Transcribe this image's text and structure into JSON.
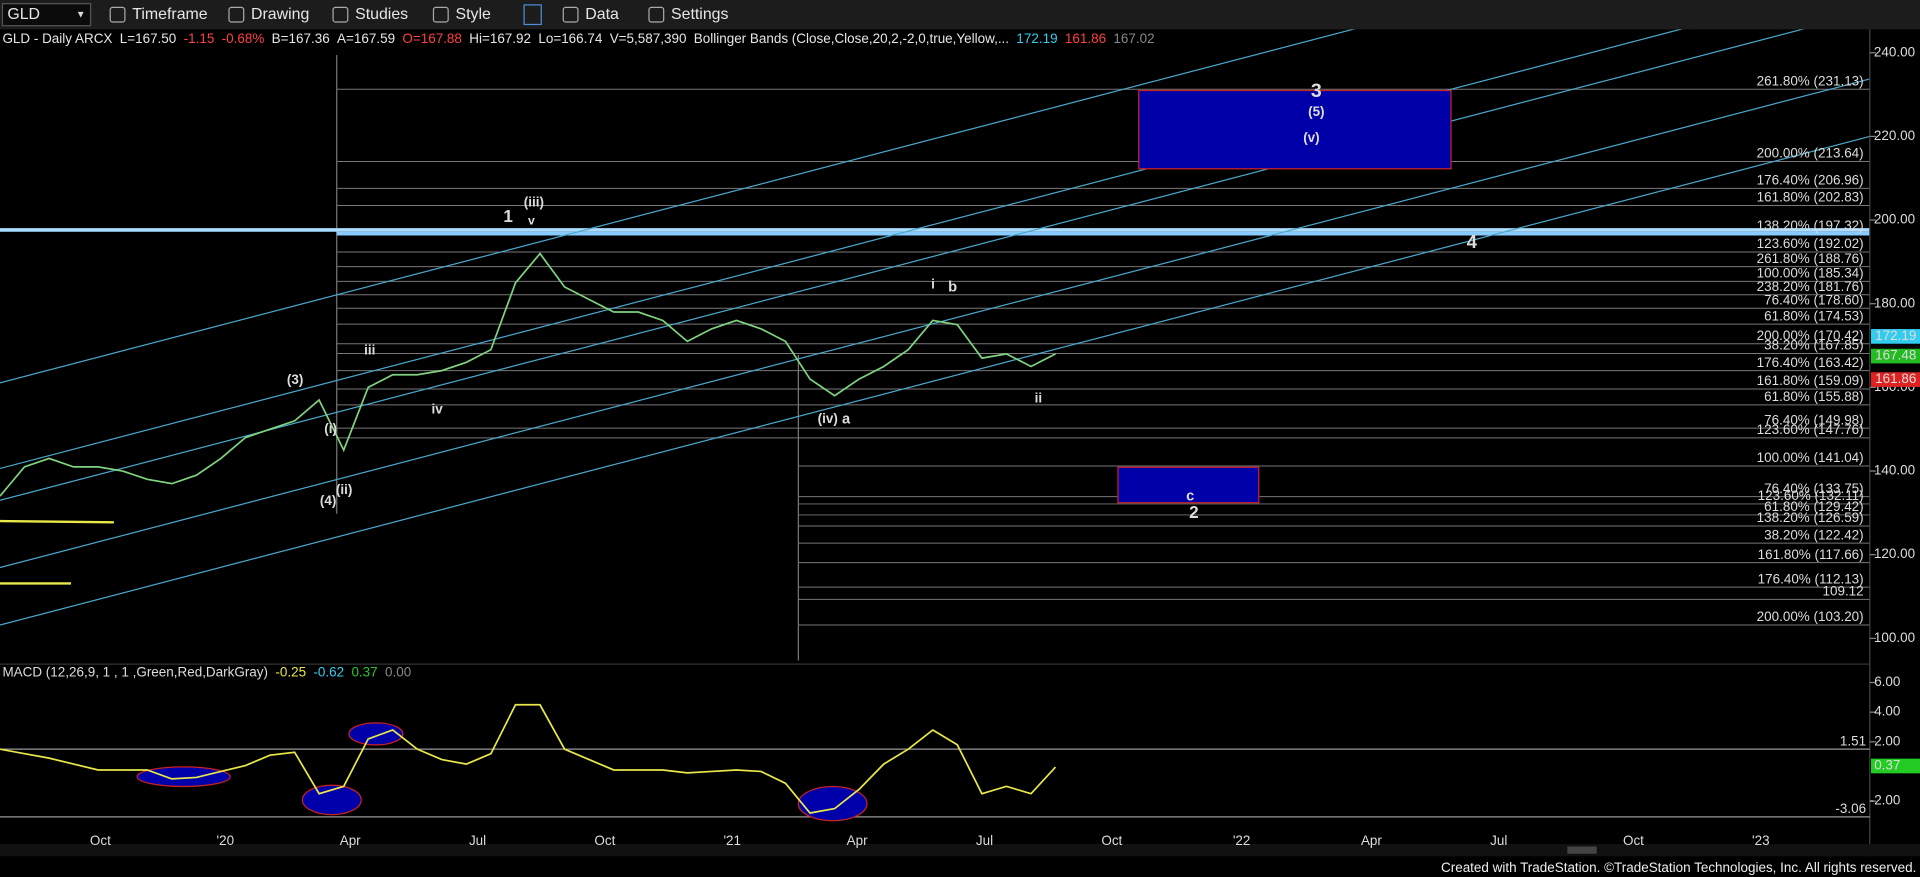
{
  "toolbar": {
    "symbol": "GLD",
    "buttons": [
      "Timeframe",
      "Drawing",
      "Studies",
      "Style",
      "Data",
      "Settings"
    ]
  },
  "header": {
    "items": [
      {
        "label": "GLD - Daily  ARCX",
        "color": "#e6e6e6"
      },
      {
        "label": "L=167.50",
        "color": "#e6e6e6"
      },
      {
        "label": "-1.15",
        "color": "#ff4040"
      },
      {
        "label": "-0.68%",
        "color": "#ff4040"
      },
      {
        "label": "B=167.36",
        "color": "#e6e6e6"
      },
      {
        "label": "A=167.59",
        "color": "#e6e6e6"
      },
      {
        "label": "O=167.88",
        "color": "#ff4040"
      },
      {
        "label": "Hi=167.92",
        "color": "#e6e6e6"
      },
      {
        "label": "Lo=166.74",
        "color": "#e6e6e6"
      },
      {
        "label": "V=5,587,390",
        "color": "#e6e6e6"
      },
      {
        "label": "Bollinger Bands (Close,Close,20,2,-2,0,true,Yellow,...",
        "color": "#e6e6e6"
      },
      {
        "label": "172.19",
        "color": "#33ccee"
      },
      {
        "label": "161.86",
        "color": "#ff4040"
      },
      {
        "label": "167.02",
        "color": "#888888"
      }
    ]
  },
  "chart_data": [
    {
      "type": "line",
      "series": [
        {
          "name": "GLD",
          "color": "#7fd37f",
          "values": [
            134,
            141,
            143,
            141,
            141,
            140,
            138,
            137,
            139,
            143,
            148,
            150,
            152,
            157,
            145,
            160,
            163,
            163,
            164,
            166,
            169,
            185,
            192,
            184,
            181,
            178,
            178,
            176,
            171,
            174,
            176,
            174,
            171,
            162,
            158,
            162,
            165,
            169,
            176,
            175,
            167,
            168,
            165,
            168
          ]
        }
      ],
      "ylim": [
        94.7,
        241.5
      ],
      "yticks": [
        {
          "value": 100,
          "label": "100.00"
        },
        {
          "value": 120,
          "label": "120.00"
        },
        {
          "value": 140,
          "label": "140.00"
        },
        {
          "value": 160,
          "label": "160.00"
        },
        {
          "value": 180,
          "label": "180.00"
        },
        {
          "value": 200,
          "label": "200.00"
        },
        {
          "value": 220,
          "label": "220.00"
        },
        {
          "value": 240,
          "label": "240.00"
        }
      ],
      "badges": [
        {
          "value": 172.19,
          "color": "#33ccee"
        },
        {
          "value": 167.48,
          "color": "#22bb22"
        },
        {
          "value": 161.86,
          "color": "#dd2222"
        }
      ]
    },
    {
      "type": "line",
      "title": "MACD (12,26,9, 1 , 1 ,Green,Red,DarkGray)",
      "legend": [
        {
          "label": "-0.25",
          "color": "#e8e84a"
        },
        {
          "label": "-0.62",
          "color": "#33ccee"
        },
        {
          "label": "0.37",
          "color": "#22cc22"
        },
        {
          "label": "0.00",
          "color": "#888888"
        }
      ],
      "series": [
        {
          "name": "MACD",
          "color": "#e8e84a",
          "values": [
            1.5,
            1.2,
            0.9,
            0.5,
            0.1,
            0.1,
            0.1,
            -0.5,
            -0.4,
            0,
            0.4,
            1.1,
            1.3,
            -1.5,
            -1.0,
            2.2,
            2.8,
            1.5,
            0.8,
            0.5,
            1.2,
            4.5,
            4.5,
            1.5,
            0.8,
            0.1,
            0.1,
            0.1,
            -0.1,
            0,
            0.1,
            0,
            -0.8,
            -2.8,
            -2.5,
            -1.2,
            0.5,
            1.5,
            2.8,
            1.8,
            -1.5,
            -1.0,
            -1.5,
            0.3
          ]
        }
      ],
      "ylim": [
        -3.65,
        7.07
      ],
      "yticks": [
        {
          "value": -2,
          "label": "-2.00"
        },
        {
          "value": 2,
          "label": "2.00"
        },
        {
          "value": 4,
          "label": "4.00"
        },
        {
          "value": 6,
          "label": "6.00"
        }
      ],
      "levels": [
        1.51,
        -3.06
      ],
      "badge": {
        "value": 0.37,
        "color": "#22cc22"
      }
    }
  ],
  "x_axis_labels": [
    "Oct",
    "'20",
    "Apr",
    "Jul",
    "Oct",
    "'21",
    "Apr",
    "Jul",
    "Oct",
    "'22",
    "Apr",
    "Jul",
    "Oct",
    "'23"
  ],
  "fib_labels": [
    {
      "label": "261.80% (231.13)",
      "color": "#dddddd"
    },
    {
      "label": "200.00% (213.64)",
      "color": "#dddddd"
    },
    {
      "label": "176.40% (206.96)",
      "color": "#dddddd"
    },
    {
      "label": "161.80% (202.83)",
      "color": "#e0d050"
    },
    {
      "label": "138.20% (197.32)",
      "color": "#66aacc"
    },
    {
      "label": "123.60% (192.02)",
      "color": "#dddddd"
    },
    {
      "label": "261.80% (188.76)",
      "color": "#dddddd"
    },
    {
      "label": "100.00% (185.34)",
      "color": "#dddddd"
    },
    {
      "label": "238.20% (181.76)",
      "color": "#dddddd"
    },
    {
      "label": "76.40% (178.60)",
      "color": "#dddddd"
    },
    {
      "label": "61.80% (174.53)",
      "color": "#e0d050"
    },
    {
      "label": "200.00% (170.42)",
      "color": "#dddddd"
    },
    {
      "label": "38.20% (167.85)",
      "color": "#66aacc"
    },
    {
      "label": "176.40% (163.42)",
      "color": "#dddddd"
    },
    {
      "label": "161.80% (159.09)",
      "color": "#dddddd"
    },
    {
      "label": "61.80% (155.88)",
      "color": "#e0d050"
    },
    {
      "label": "76.40% (149.98)",
      "color": "#dddddd"
    },
    {
      "label": "123.60% (147.76)",
      "color": "#dddddd"
    },
    {
      "label": "100.00% (141.04)",
      "color": "#dddddd"
    },
    {
      "label": "76.40% (133.75)",
      "color": "#dddddd"
    },
    {
      "label": "123.60% (132.11)",
      "color": "#dddddd"
    },
    {
      "label": "61.80% (129.42)",
      "color": "#dddddd"
    },
    {
      "label": "138.20% (126.59)",
      "color": "#66aacc"
    },
    {
      "label": "38.20% (122.42)",
      "color": "#dddddd"
    },
    {
      "label": "161.80% (117.66)",
      "color": "#e0d050"
    },
    {
      "label": "176.40% (112.13)",
      "color": "#dddddd"
    },
    {
      "label": "109.12",
      "color": "#dddddd"
    },
    {
      "label": "200.00% (103.20)",
      "color": "#dddddd"
    }
  ],
  "wave_labels": [
    {
      "label": "1",
      "color": "#ff2020"
    },
    {
      "label": "(iii)",
      "color": "#44cc44"
    },
    {
      "label": "v",
      "color": "#44cc44"
    },
    {
      "label": "3",
      "color": "#44dd44"
    },
    {
      "label": "(5)",
      "color": "#44cc44"
    },
    {
      "label": "(v)",
      "color": "#44cc44"
    },
    {
      "label": "4",
      "color": "#44dd44"
    },
    {
      "label": "i",
      "color": "#ff2020"
    },
    {
      "label": "b",
      "color": "#ff2020"
    },
    {
      "label": "(iv)",
      "color": "#44cc44"
    },
    {
      "label": "a",
      "color": "#ff2020"
    },
    {
      "label": "c",
      "color": "#ff2020"
    },
    {
      "label": "2",
      "color": "#ff2020"
    },
    {
      "label": "ii",
      "color": "#44cc44"
    },
    {
      "label": "(3)",
      "color": "#44cc44"
    },
    {
      "label": "iii",
      "color": "#44cc44"
    },
    {
      "label": "iv",
      "color": "#44cc44"
    },
    {
      "label": "(i)",
      "color": "#44cc44"
    },
    {
      "label": "(ii)",
      "color": "#44cc44"
    },
    {
      "label": "(4)",
      "color": "#44cc44"
    }
  ],
  "footer": "Created with TradeStation. ©TradeStation Technologies, Inc. All rights reserved."
}
